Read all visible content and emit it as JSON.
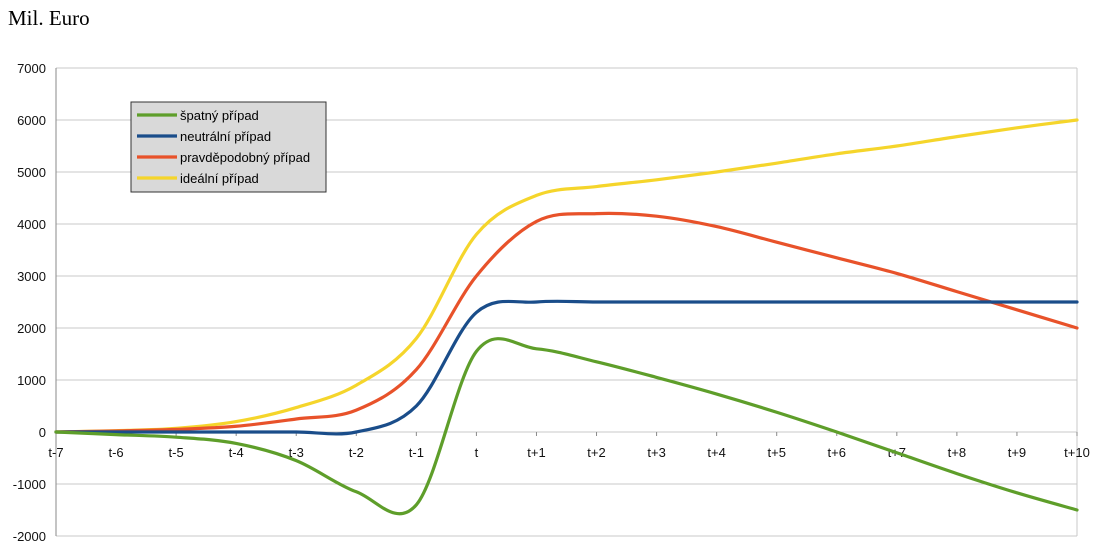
{
  "page_title": "Mil. Euro",
  "chart_data": {
    "type": "line",
    "ylabel": "Mil. Euro",
    "xlabel": "",
    "title": "",
    "ylim": [
      -2000,
      7000
    ],
    "y_ticks": [
      7000,
      6000,
      5000,
      4000,
      3000,
      2000,
      1000,
      0,
      -1000,
      -2000
    ],
    "categories": [
      "t-7",
      "t-6",
      "t-5",
      "t-4",
      "t-3",
      "t-2",
      "t-1",
      "t",
      "t+1",
      "t+2",
      "t+3",
      "t+4",
      "t+5",
      "t+6",
      "t+7",
      "t+8",
      "t+9",
      "t+10"
    ],
    "grid": true,
    "legend_position": "top-left",
    "series": [
      {
        "name": "špatný případ",
        "color": "#5e9e2a",
        "values": [
          0,
          -50,
          -100,
          -220,
          -550,
          -1150,
          -1400,
          1550,
          1600,
          1350,
          1050,
          730,
          380,
          0,
          -400,
          -800,
          -1170,
          -1500
        ]
      },
      {
        "name": "neutrální případ",
        "color": "#1a4d8a",
        "values": [
          0,
          0,
          0,
          0,
          0,
          0,
          500,
          2300,
          2500,
          2500,
          2500,
          2500,
          2500,
          2500,
          2500,
          2500,
          2500,
          2500
        ]
      },
      {
        "name": "pravděpodobný případ",
        "color": "#e8522a",
        "values": [
          0,
          20,
          50,
          110,
          250,
          420,
          1200,
          3000,
          4050,
          4200,
          4150,
          3950,
          3650,
          3350,
          3050,
          2700,
          2350,
          2000
        ]
      },
      {
        "name": "ideální případ",
        "color": "#f5d52b",
        "values": [
          0,
          25,
          70,
          200,
          470,
          900,
          1800,
          3800,
          4550,
          4720,
          4850,
          5000,
          5170,
          5350,
          5500,
          5680,
          5850,
          6000
        ]
      }
    ]
  }
}
